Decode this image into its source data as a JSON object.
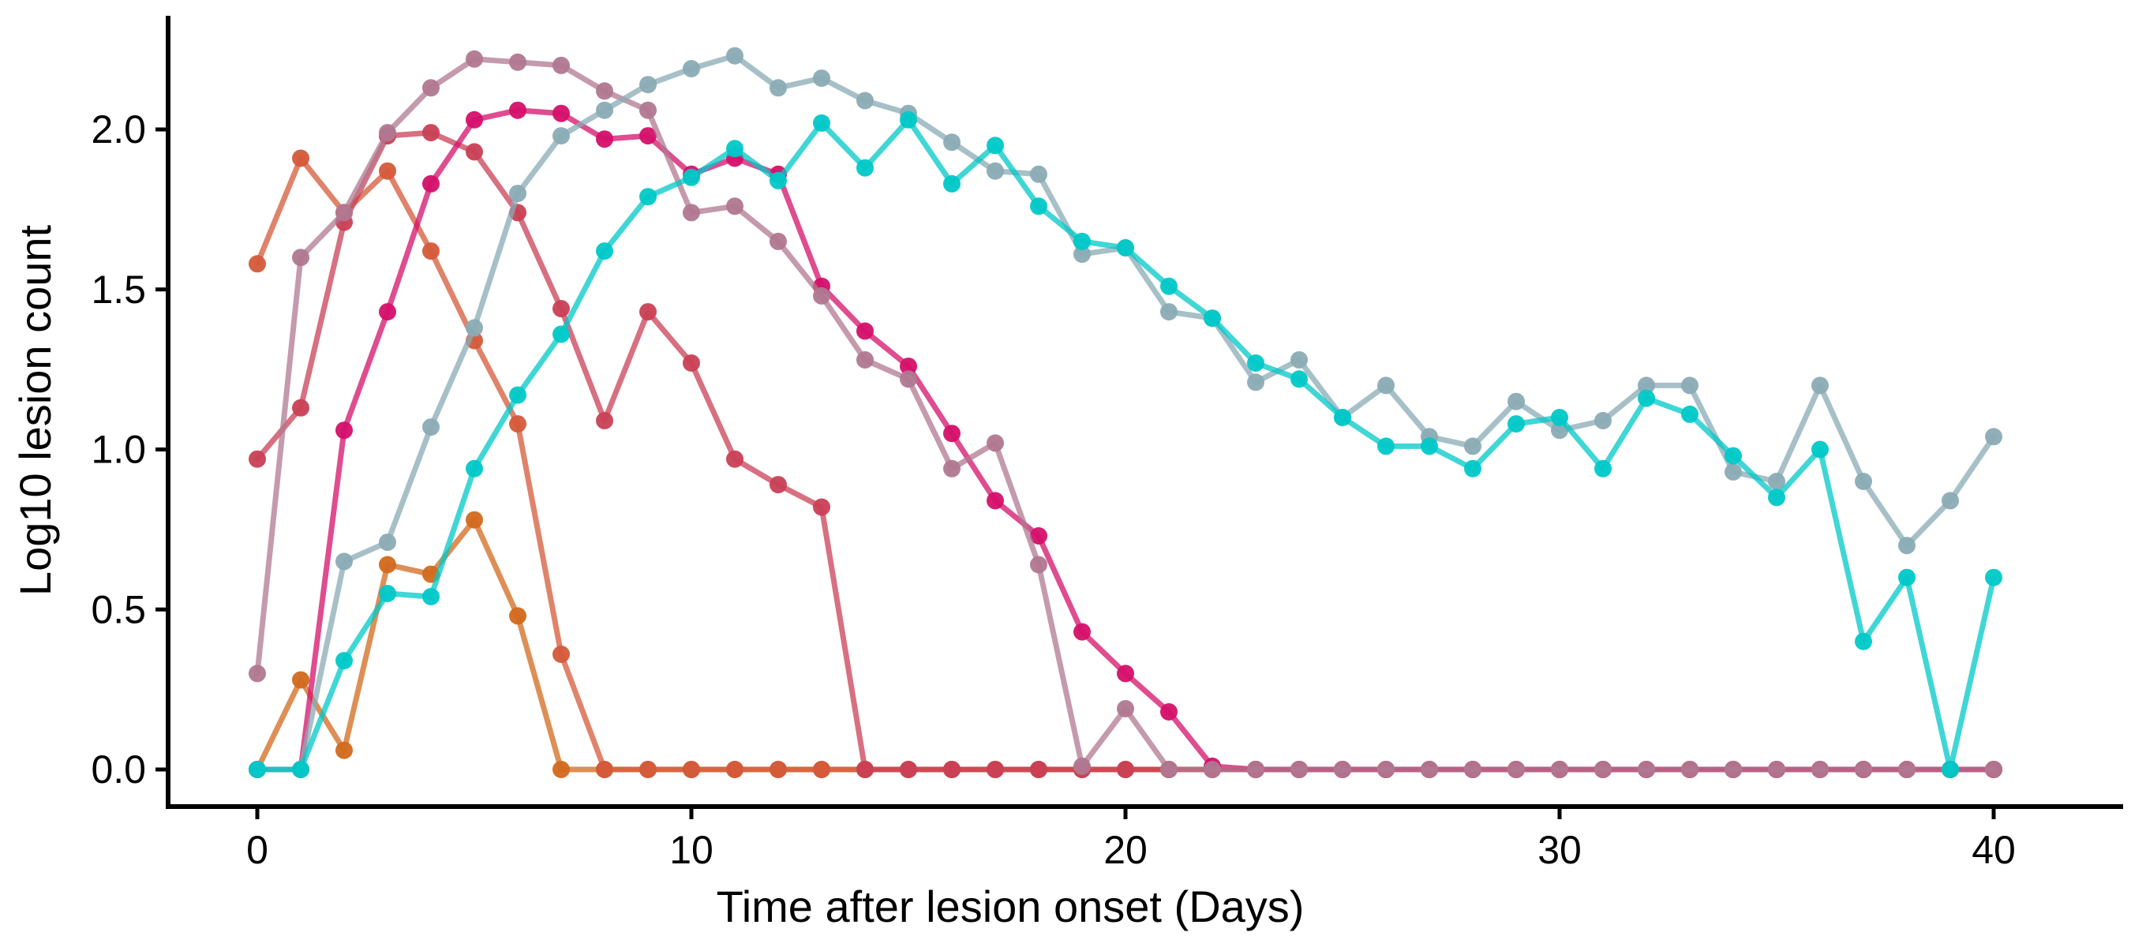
{
  "chart_data": {
    "type": "line",
    "title": "",
    "xlabel": "Time after lesion onset (Days)",
    "ylabel": "Log10 lesion count",
    "xlim": [
      -2,
      43.5
    ],
    "ylim": [
      -0.1,
      2.35
    ],
    "xticks": [
      0,
      10,
      20,
      30,
      40
    ],
    "xtick_labels": [
      "0",
      "10",
      "20",
      "30",
      "40"
    ],
    "yticks": [
      0.0,
      0.5,
      1.0,
      1.5,
      2.0
    ],
    "ytick_labels": [
      "0.0",
      "0.5",
      "1.0",
      "1.5",
      "2.0"
    ],
    "grid": false,
    "legend": "none",
    "x": [
      0,
      1,
      2,
      3,
      4,
      5,
      6,
      7,
      8,
      9,
      10,
      11,
      12,
      13,
      14,
      15,
      16,
      17,
      18,
      19,
      20,
      21,
      22,
      23,
      24,
      25,
      26,
      27,
      28,
      29,
      30,
      31,
      32,
      33,
      34,
      35,
      36,
      37,
      38,
      39,
      40
    ],
    "series": [
      {
        "color": "#d2691e",
        "values": [
          0,
          0.28,
          0.06,
          0.64,
          0.61,
          0.78,
          0.48,
          0,
          0,
          0,
          0,
          0,
          0,
          0,
          0,
          0,
          0,
          0,
          0,
          0,
          0,
          0,
          0,
          0,
          0,
          0,
          0,
          0,
          0,
          0,
          0,
          0,
          0,
          0,
          0,
          0,
          0,
          0,
          0,
          0,
          0
        ]
      },
      {
        "color": "#d45a3a",
        "values": [
          1.58,
          1.91,
          1.74,
          1.87,
          1.62,
          1.34,
          1.08,
          0.36,
          0,
          0,
          0,
          0,
          0,
          0,
          0,
          0,
          0,
          0,
          0,
          0,
          0,
          0,
          0,
          0,
          0,
          0,
          0,
          0,
          0,
          0,
          0,
          0,
          0,
          0,
          0,
          0,
          0,
          0,
          0,
          0,
          0
        ]
      },
      {
        "color": "#c94055",
        "values": [
          0.97,
          1.13,
          1.71,
          1.98,
          1.99,
          1.93,
          1.74,
          1.44,
          1.09,
          1.43,
          1.27,
          0.97,
          0.89,
          0.82,
          0,
          0,
          0,
          0,
          0,
          0,
          0,
          0,
          0,
          0,
          0,
          0,
          0,
          0,
          0,
          0,
          0,
          0,
          0,
          0,
          0,
          0,
          0,
          0,
          0,
          0,
          0
        ]
      },
      {
        "color": "#d4106a",
        "values": [
          0,
          0,
          1.06,
          1.43,
          1.83,
          2.03,
          2.06,
          2.05,
          1.97,
          1.98,
          1.86,
          1.91,
          1.86,
          1.51,
          1.37,
          1.26,
          1.05,
          0.84,
          0.73,
          0.43,
          0.3,
          0.18,
          0.01,
          0,
          0,
          0,
          0,
          0,
          0,
          0,
          0,
          0,
          0,
          0,
          0,
          0,
          0,
          0,
          0,
          0,
          0
        ]
      },
      {
        "color": "#b07890",
        "values": [
          0.3,
          1.6,
          1.74,
          1.99,
          2.13,
          2.22,
          2.21,
          2.2,
          2.12,
          2.06,
          1.74,
          1.76,
          1.65,
          1.48,
          1.28,
          1.22,
          0.94,
          1.02,
          0.64,
          0.01,
          0.19,
          0,
          0,
          0,
          0,
          0,
          0,
          0,
          0,
          0,
          0,
          0,
          0,
          0,
          0,
          0,
          0,
          0,
          0,
          0,
          0
        ]
      },
      {
        "color": "#8aabb5",
        "values": [
          0,
          0,
          0.65,
          0.71,
          1.07,
          1.38,
          1.8,
          1.98,
          2.06,
          2.14,
          2.19,
          2.23,
          2.13,
          2.16,
          2.09,
          2.05,
          1.96,
          1.87,
          1.86,
          1.61,
          1.63,
          1.43,
          1.41,
          1.21,
          1.28,
          1.1,
          1.2,
          1.04,
          1.01,
          1.15,
          1.06,
          1.09,
          1.2,
          1.2,
          0.93,
          0.9,
          1.2,
          0.9,
          0.7,
          0.84,
          1.04
        ]
      },
      {
        "color": "#00c8c8",
        "values": [
          0,
          0,
          0.34,
          0.55,
          0.54,
          0.94,
          1.17,
          1.36,
          1.62,
          1.79,
          1.85,
          1.94,
          1.84,
          2.02,
          1.88,
          2.03,
          1.83,
          1.95,
          1.76,
          1.65,
          1.63,
          1.51,
          1.41,
          1.27,
          1.22,
          1.1,
          1.01,
          1.01,
          0.94,
          1.08,
          1.1,
          0.94,
          1.16,
          1.11,
          0.98,
          0.85,
          1.0,
          0.4,
          0.6,
          0,
          0.6
        ]
      }
    ]
  }
}
